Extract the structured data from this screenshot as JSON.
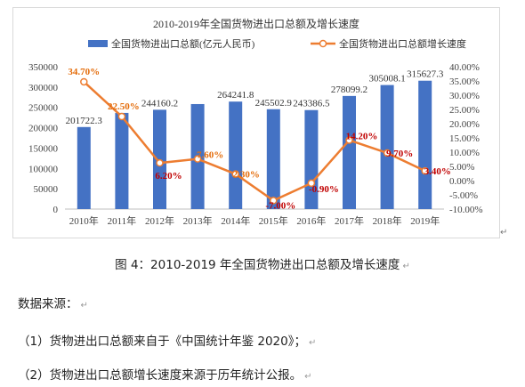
{
  "chart_data": {
    "type": "bar+line",
    "title": "2010-2019年全国货物进出口总额及增长速度",
    "categories": [
      "2010年",
      "2011年",
      "2012年",
      "2013年",
      "2014年",
      "2015年",
      "2016年",
      "2017年",
      "2018年",
      "2019年"
    ],
    "bar_series": {
      "name": "全国货物进出口总额(亿元人民币)",
      "color": "#4472C4",
      "values": [
        201722.3,
        236402.0,
        244160.2,
        258168.9,
        264241.8,
        245502.9,
        243386.5,
        278099.2,
        305008.1,
        315627.3
      ],
      "labels": [
        "201722.3",
        "",
        "244160.2",
        "",
        "264241.8",
        "245502.9",
        "243386.5",
        "278099.2",
        "305008.1",
        "315627.3"
      ]
    },
    "line_series": {
      "name": "全国货物进出口总额增长速度",
      "color": "#ED7D31",
      "values": [
        34.7,
        22.5,
        6.2,
        7.6,
        2.3,
        -7.0,
        -0.9,
        14.2,
        9.7,
        3.4
      ],
      "labels": [
        "34.70%",
        "22.50%",
        "6.20%",
        "7.60%",
        "2.30%",
        "-7.00%",
        "-0.90%",
        "14.20%",
        "9.70%",
        "3.40%"
      ],
      "label_colors": [
        "#E46C0A",
        "#E46C0A",
        "#C00000",
        "#E46C0A",
        "#E46C0A",
        "#C00000",
        "#C00000",
        "#C00000",
        "#C00000",
        "#C00000"
      ]
    },
    "y_left": {
      "min": 0,
      "max": 350000,
      "step": 50000,
      "ticks": [
        "0",
        "50000",
        "100000",
        "150000",
        "200000",
        "250000",
        "300000",
        "350000"
      ]
    },
    "y_right": {
      "min": -10,
      "max": 40,
      "step": 5,
      "ticks": [
        "-10.00%",
        "-5.00%",
        "0.00%",
        "5.00%",
        "10.00%",
        "15.00%",
        "20.00%",
        "25.00%",
        "30.00%",
        "35.00%",
        "40.00%"
      ]
    },
    "legend": "top",
    "grid": false
  },
  "doc": {
    "caption": "图 4：2010-2019 年全国货物进出口总额及增长速度",
    "source_heading": "数据来源：",
    "items": [
      "（1）货物进出口总额来自于《中国统计年鉴 2020》；",
      "（2）货物进出口总额增长速度来源于历年统计公报。"
    ],
    "para_mark": "↵"
  }
}
